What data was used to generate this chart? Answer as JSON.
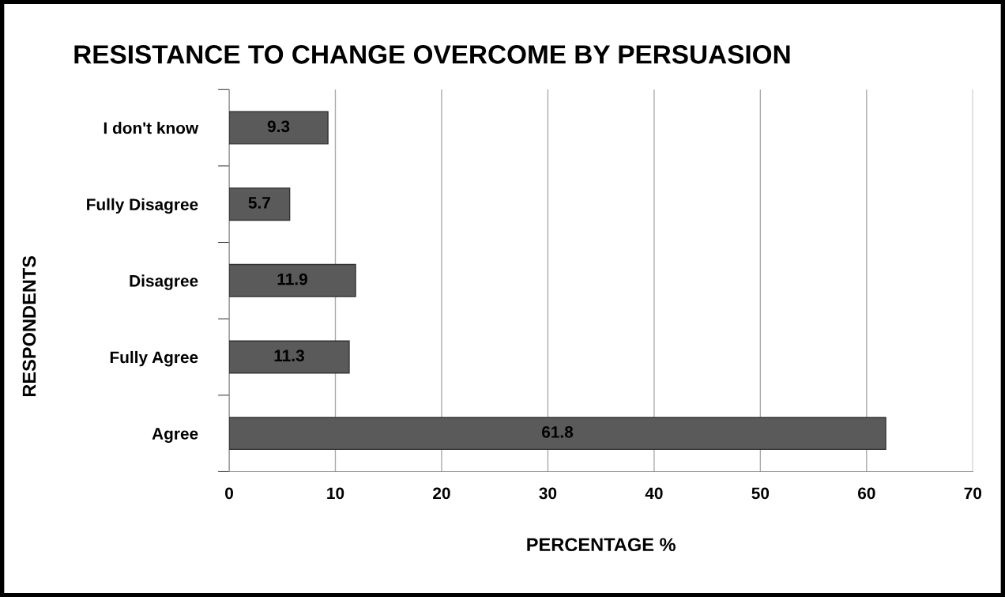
{
  "chart_data": {
    "type": "bar",
    "orientation": "horizontal",
    "title": "RESISTANCE TO CHANGE OVERCOME BY PERSUASION",
    "xlabel": "PERCENTAGE %",
    "ylabel": "RESPONDENTS",
    "categories": [
      "I don't know",
      "Fully Disagree",
      "Disagree",
      "Fully Agree",
      "Agree"
    ],
    "values": [
      9.3,
      5.7,
      11.9,
      11.3,
      61.8
    ],
    "color": "#5a5a5a",
    "xlim": [
      0,
      70
    ],
    "xticks": [
      0,
      10,
      20,
      30,
      40,
      50,
      60,
      70
    ],
    "grid": "x",
    "data_labels": true
  }
}
